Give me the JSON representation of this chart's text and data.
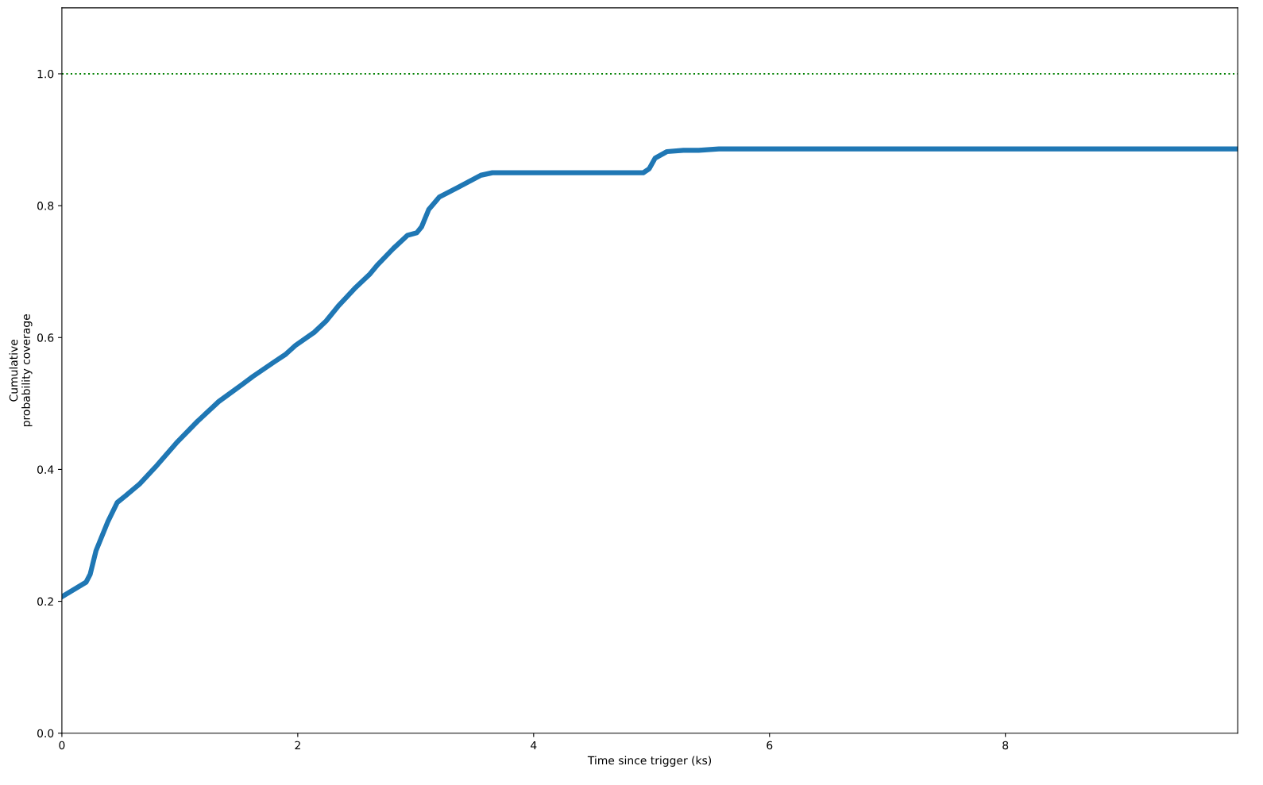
{
  "chart_data": {
    "type": "line",
    "xlabel": "Time since trigger (ks)",
    "ylabel": "Cumulative\nprobability coverage",
    "xlim": [
      0,
      9.97
    ],
    "ylim": [
      0,
      1.1
    ],
    "xticks": [
      0,
      2,
      4,
      6,
      8
    ],
    "yticks": [
      {
        "value": 0,
        "label": "0.0"
      },
      {
        "value": 0.2,
        "label": "0.2"
      },
      {
        "value": 0.4,
        "label": "0.4"
      },
      {
        "value": 0.6,
        "label": "0.6"
      },
      {
        "value": 0.8,
        "label": "0.8"
      },
      {
        "value": 1.0,
        "label": "1.0"
      }
    ],
    "grid": false,
    "legend": false,
    "marker": "none",
    "line_style": "solid",
    "ref_lines": [
      {
        "axis": "y",
        "value": 1.0,
        "label": null,
        "color": "#008000",
        "line_style": "dotted"
      }
    ],
    "series": [
      {
        "color": "#1f77b4",
        "x": [
          0,
          0.205,
          0.24,
          0.29,
          0.39,
          0.47,
          0.54,
          0.66,
          0.79,
          0.97,
          1.15,
          1.33,
          1.53,
          1.62,
          1.8,
          1.9,
          1.98,
          2.14,
          2.24,
          2.34,
          2.48,
          2.61,
          2.68,
          2.81,
          2.93,
          3.01,
          3.05,
          3.11,
          3.2,
          3.35,
          3.55,
          3.65,
          4.93,
          4.98,
          5.03,
          5.13,
          5.27,
          5.4,
          5.57,
          6.2,
          9.97
        ],
        "values": [
          0.207,
          0.229,
          0.241,
          0.277,
          0.321,
          0.35,
          0.36,
          0.378,
          0.403,
          0.44,
          0.473,
          0.503,
          0.529,
          0.541,
          0.563,
          0.575,
          0.588,
          0.608,
          0.625,
          0.647,
          0.674,
          0.696,
          0.711,
          0.735,
          0.755,
          0.759,
          0.768,
          0.794,
          0.813,
          0.827,
          0.846,
          0.85,
          0.85,
          0.856,
          0.872,
          0.882,
          0.884,
          0.884,
          0.886,
          0.886,
          0.886
        ]
      }
    ]
  }
}
